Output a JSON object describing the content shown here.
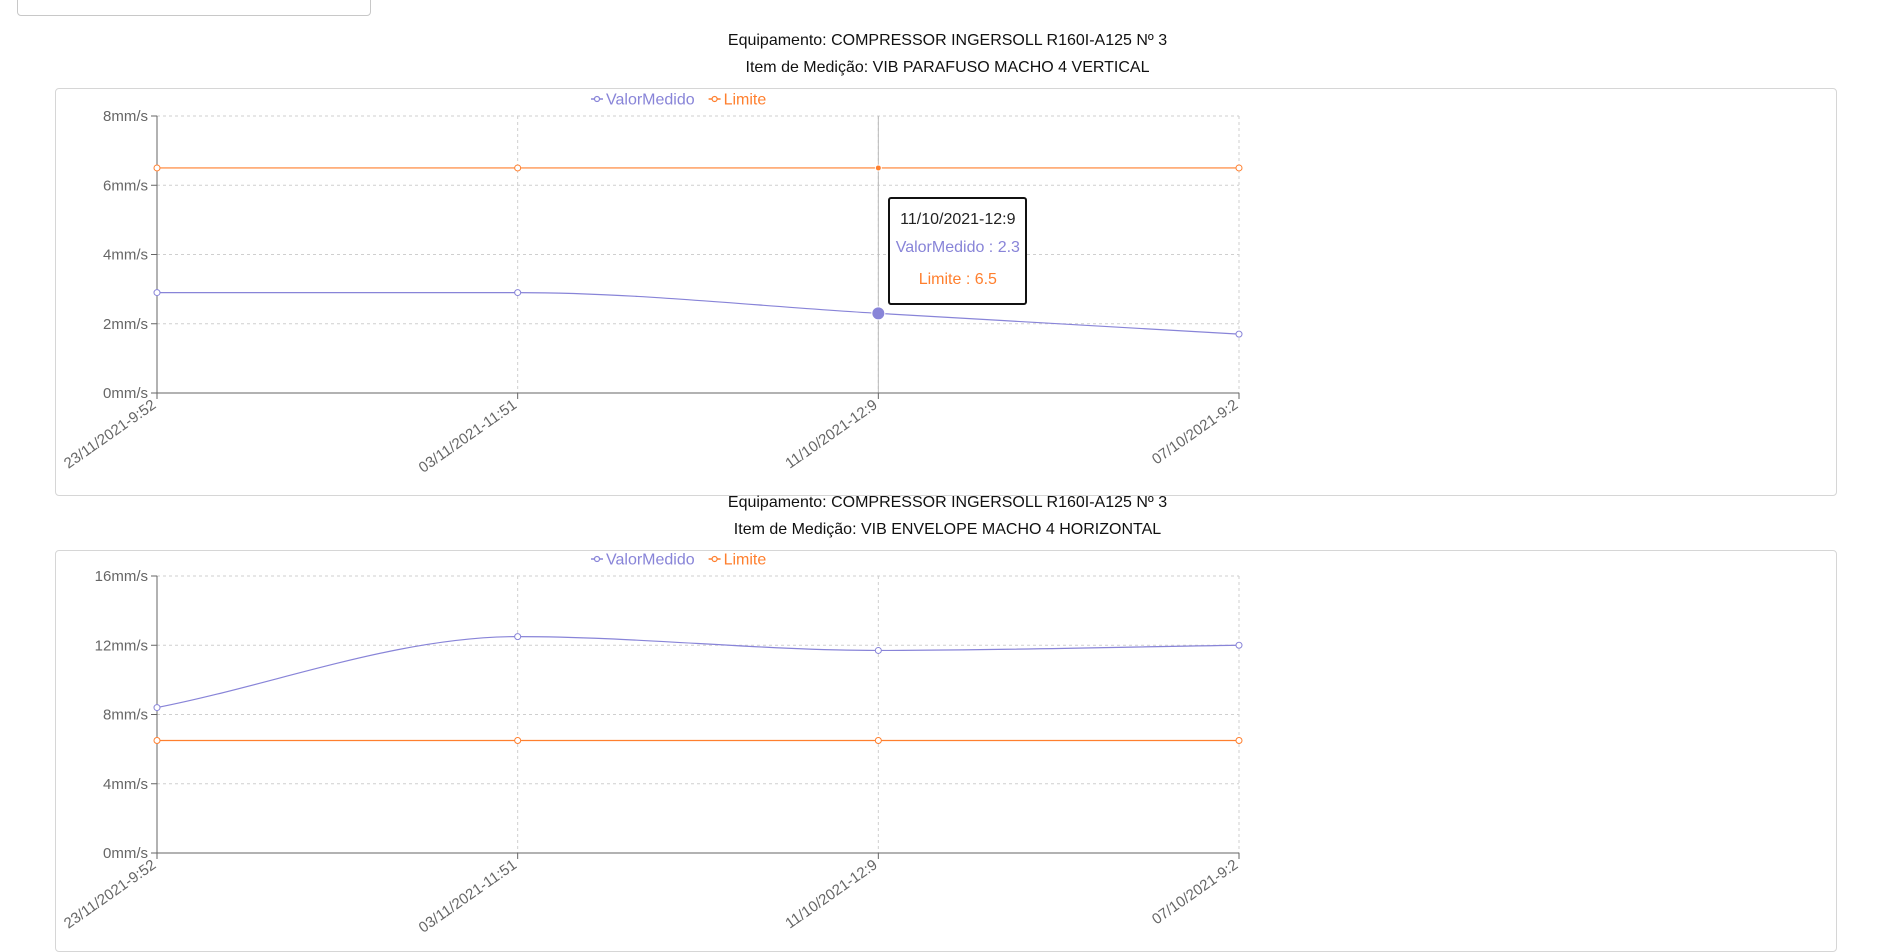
{
  "chart_data": [
    {
      "type": "line",
      "title_lines": [
        "Equipamento: COMPRESSOR INGERSOLL R160I-A125 Nº 3",
        "Item de Medição: VIB PARAFUSO MACHO 4 VERTICAL"
      ],
      "categories": [
        "23/11/2021-9:52",
        "03/11/2021-11:51",
        "11/10/2021-12:9",
        "07/10/2021-9:2"
      ],
      "series": [
        {
          "name": "ValorMedido",
          "values": [
            2.9,
            2.9,
            2.3,
            1.7
          ],
          "color": "#8884d8"
        },
        {
          "name": "Limite",
          "values": [
            6.5,
            6.5,
            6.5,
            6.5
          ],
          "color": "#ff7f2e"
        }
      ],
      "ylim": [
        0,
        8
      ],
      "yticks": [
        0,
        2,
        4,
        6,
        8
      ],
      "yticks_labels": [
        "0mm/s",
        "2mm/s",
        "4mm/s",
        "6mm/s",
        "8mm/s"
      ],
      "grid": true,
      "legend_position": "top",
      "tooltip": {
        "active_index": 2,
        "label": "11/10/2021-12:9",
        "lines": [
          "ValorMedido : 2.3",
          "Limite : 6.5"
        ]
      }
    },
    {
      "type": "line",
      "title_lines": [
        "Equipamento: COMPRESSOR INGERSOLL R160I-A125 Nº 3",
        "Item de Medição: VIB ENVELOPE MACHO 4 HORIZONTAL"
      ],
      "categories": [
        "23/11/2021-9:52",
        "03/11/2021-11:51",
        "11/10/2021-12:9",
        "07/10/2021-9:2"
      ],
      "series": [
        {
          "name": "ValorMedido",
          "values": [
            8.4,
            12.5,
            11.7,
            12.0
          ],
          "color": "#8884d8"
        },
        {
          "name": "Limite",
          "values": [
            6.5,
            6.5,
            6.5,
            6.5
          ],
          "color": "#ff7f2e"
        }
      ],
      "ylim": [
        0,
        16
      ],
      "yticks": [
        0,
        4,
        8,
        12,
        16
      ],
      "yticks_labels": [
        "0mm/s",
        "4mm/s",
        "8mm/s",
        "12mm/s",
        "16mm/s"
      ],
      "grid": true,
      "legend_position": "top"
    }
  ]
}
